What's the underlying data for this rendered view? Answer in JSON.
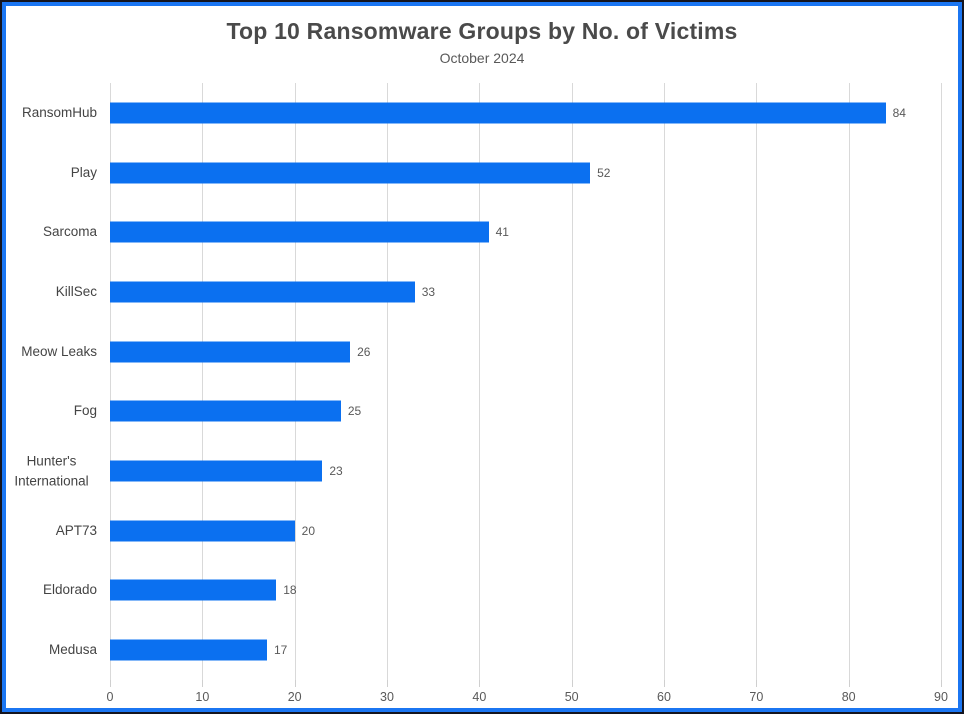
{
  "window": {
    "outer_border_color": "#14141e",
    "accent_border_color": "#1b76f2",
    "background_color": "#ffffff"
  },
  "chart_data": {
    "type": "bar",
    "orientation": "horizontal",
    "title": "Top 10 Ransomware Groups by No. of Victims",
    "subtitle": "October 2024",
    "categories": [
      "RansomHub",
      "Play",
      "Sarcoma",
      "KillSec",
      "Meow Leaks",
      "Fog",
      "Hunter's International",
      "APT73",
      "Eldorado",
      "Medusa"
    ],
    "values": [
      84,
      52,
      41,
      33,
      26,
      25,
      23,
      20,
      18,
      17
    ],
    "data_labels": [
      "84",
      "52",
      "41",
      "33",
      "26",
      "25",
      "23",
      "20",
      "18",
      "17"
    ],
    "xlabel": "",
    "ylabel": "",
    "xlim": [
      0,
      90
    ],
    "xticks": [
      0,
      10,
      20,
      30,
      40,
      50,
      60,
      70,
      80,
      90
    ],
    "grid": true,
    "legend": false,
    "bar_color": "#0b70f0",
    "gridline_color": "#d9d9d9",
    "text_color": "#595959"
  }
}
